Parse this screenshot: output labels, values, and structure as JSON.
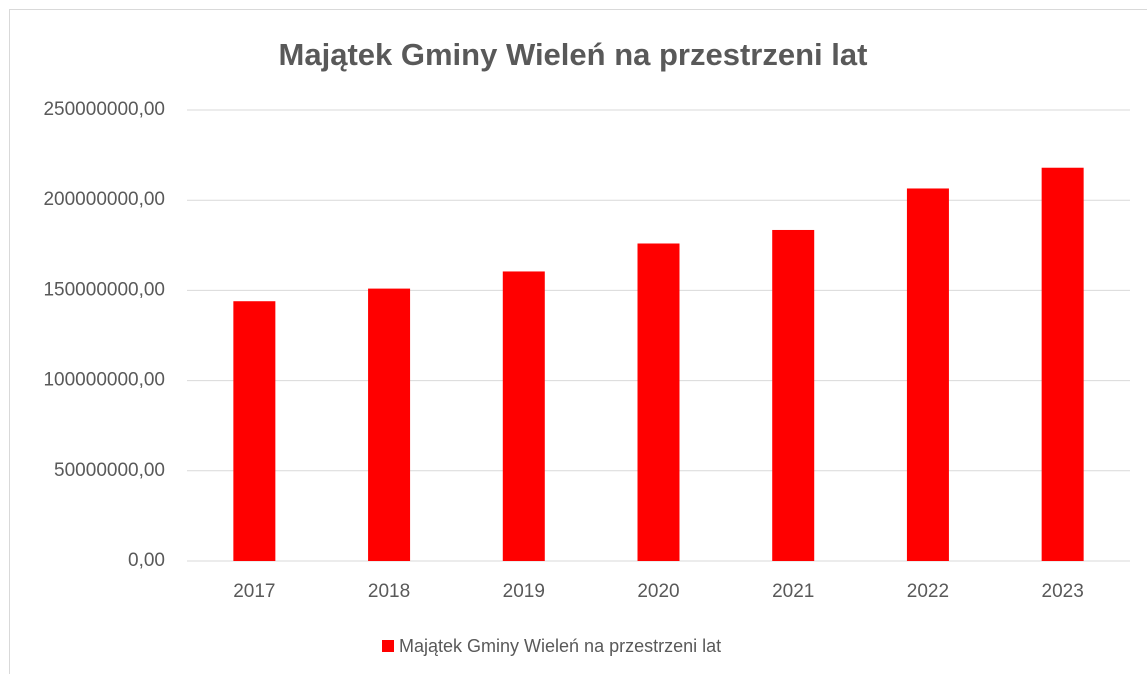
{
  "chart_data": {
    "type": "bar",
    "title": "Majątek Gminy Wieleń na przestrzeni lat",
    "categories": [
      "2017",
      "2018",
      "2019",
      "2020",
      "2021",
      "2022",
      "2023"
    ],
    "series": [
      {
        "name": "Majątek Gminy Wieleń na przestrzeni lat",
        "color": "#ff0000",
        "values": [
          144000000,
          151000000,
          160500000,
          176000000,
          183500000,
          206500000,
          218000000
        ]
      }
    ],
    "ylim": [
      0,
      250000000
    ],
    "yticks": [
      {
        "value": 0,
        "label": "0,00"
      },
      {
        "value": 50000000,
        "label": "50000000,00"
      },
      {
        "value": 100000000,
        "label": "100000000,00"
      },
      {
        "value": 150000000,
        "label": "150000000,00"
      },
      {
        "value": 200000000,
        "label": "200000000,00"
      },
      {
        "value": 250000000,
        "label": "250000000,00"
      }
    ],
    "grid": true,
    "legend": "bottom"
  }
}
